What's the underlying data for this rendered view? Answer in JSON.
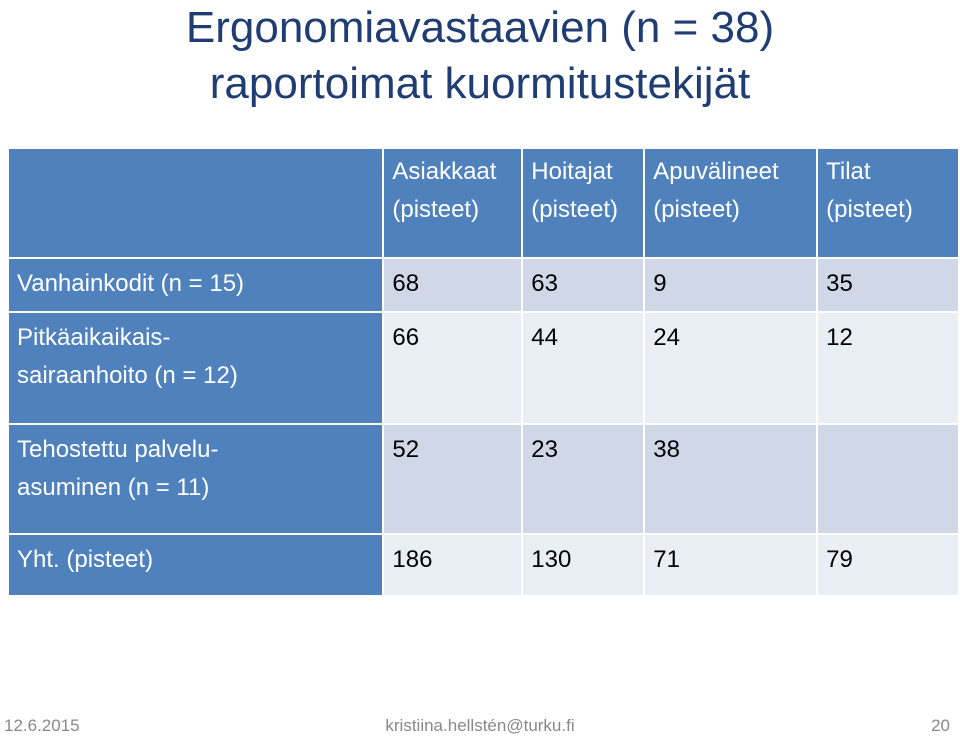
{
  "title": {
    "line1": "Ergonomiavastaavien (n = 38)",
    "line2": "raportoimat kuormitustekijät"
  },
  "table": {
    "headers": [
      {
        "line1": "Asiakkaat",
        "line2": "(pisteet)"
      },
      {
        "line1": "Hoitajat",
        "line2": "(pisteet)"
      },
      {
        "line1": "Apuvälineet",
        "line2": "(pisteet)"
      },
      {
        "line1": "Tilat",
        "line2": "(pisteet)"
      }
    ],
    "rows": [
      {
        "label_line1": "Vanhainkodit (n = 15)",
        "label_line2": "",
        "values": [
          "68",
          "63",
          "9",
          "35"
        ]
      },
      {
        "label_line1": "Pitkäaikaikais-",
        "label_line2": "sairaanhoito  (n = 12)",
        "values": [
          "66",
          "44",
          "24",
          "12"
        ]
      },
      {
        "label_line1": "Tehostettu palvelu-",
        "label_line2": "asuminen  (n = 11)",
        "values": [
          "52",
          "23",
          "38",
          ""
        ]
      },
      {
        "label_line1": "Yht. (pisteet)",
        "label_line2": "",
        "values": [
          "186",
          "130",
          "71",
          "79"
        ]
      }
    ]
  },
  "footer": {
    "date": "12.6.2015",
    "email": "kristiina.hellstén@turku.fi",
    "page": "20"
  },
  "colors": {
    "title": "#1f3d73",
    "header_fill": "#4f81bd",
    "cell_dark": "#d0d8e8",
    "cell_light": "#e9edf4"
  }
}
